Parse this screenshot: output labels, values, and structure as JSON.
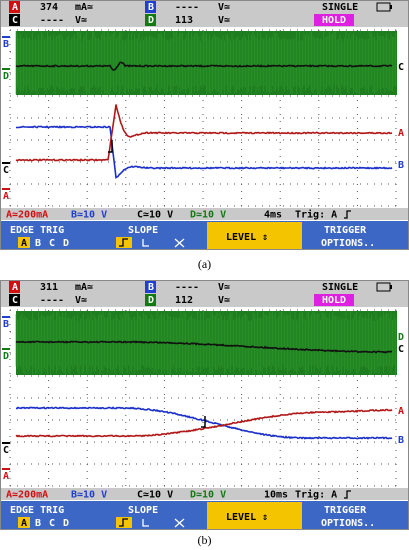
{
  "panels": [
    {
      "readout": {
        "row1": [
          "A",
          "374",
          "mA≃",
          "B",
          "----",
          "V≃",
          "SINGLE"
        ],
        "row2": [
          "C",
          "----",
          "V≃",
          "D",
          "113",
          "V≃",
          "HOLD"
        ]
      },
      "trace_labels": {
        "left": [
          "B",
          "D",
          "C",
          "A"
        ],
        "right": [
          "C",
          "A",
          "B"
        ]
      },
      "status": [
        "A≃200mA",
        "B≃10 V",
        "C≃10 V",
        "D≃10 V",
        "4ms",
        "Trig: A"
      ],
      "softkeys": {
        "edge": "EDGE TRIG",
        "channels": [
          "A",
          "B",
          "C",
          "D"
        ],
        "slope": "SLOPE",
        "level": "LEVEL ⇕",
        "trigger": [
          "TRIGGER",
          "OPTIONS.."
        ]
      },
      "caption": "(a)"
    },
    {
      "readout": {
        "row1": [
          "A",
          "311",
          "mA≃",
          "B",
          "----",
          "V≃",
          "SINGLE"
        ],
        "row2": [
          "C",
          "----",
          "V≃",
          "D",
          "112",
          "V≃",
          "HOLD"
        ]
      },
      "trace_labels": {
        "left": [
          "B",
          "D",
          "C",
          "A"
        ],
        "right": [
          "D",
          "C",
          "A",
          "B"
        ]
      },
      "status": [
        "A≃200mA",
        "B≃10 V",
        "C≃10 V",
        "D≃10 V",
        "10ms",
        "Trig: A"
      ],
      "softkeys": {
        "edge": "EDGE TRIG",
        "channels": [
          "A",
          "B",
          "C",
          "D"
        ],
        "slope": "SLOPE",
        "level": "LEVEL ⇕",
        "trigger": [
          "TRIGGER",
          "OPTIONS.."
        ]
      },
      "caption": "(b)"
    }
  ]
}
